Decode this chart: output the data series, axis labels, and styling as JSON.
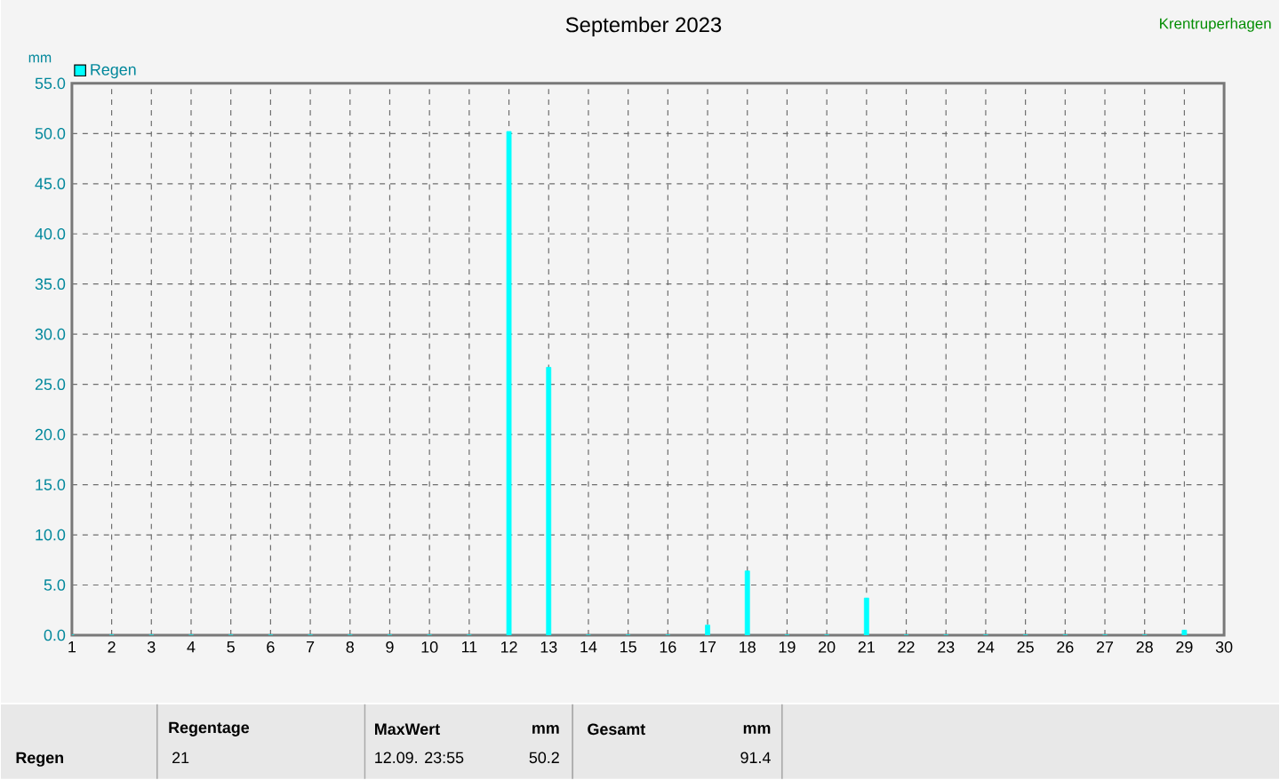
{
  "chart_data": {
    "type": "bar",
    "title": "September 2023",
    "xlabel": null,
    "ylabel": "mm",
    "x": [
      1,
      2,
      3,
      4,
      5,
      6,
      7,
      8,
      9,
      10,
      11,
      12,
      13,
      14,
      15,
      16,
      17,
      18,
      19,
      20,
      21,
      22,
      23,
      24,
      25,
      26,
      27,
      28,
      29
    ],
    "series": [
      {
        "name": "Regen",
        "color": "#00ffff",
        "values": [
          0,
          0,
          0,
          0,
          0,
          0,
          0,
          0,
          0,
          0,
          0,
          50.2,
          26.7,
          0,
          0,
          0,
          1.0,
          6.4,
          0,
          0,
          3.7,
          0,
          0,
          0,
          0,
          0,
          0,
          0,
          0.5
        ]
      }
    ],
    "xlim": [
      1,
      30
    ],
    "xticks": [
      1,
      2,
      3,
      4,
      5,
      6,
      7,
      8,
      9,
      10,
      11,
      12,
      13,
      14,
      15,
      16,
      17,
      18,
      19,
      20,
      21,
      22,
      23,
      24,
      25,
      26,
      27,
      28,
      29,
      30
    ],
    "ylim": [
      0,
      55
    ],
    "yticks": [
      {
        "value": 0,
        "label": "0.0"
      },
      {
        "value": 5,
        "label": "5.0"
      },
      {
        "value": 10,
        "label": "10.0"
      },
      {
        "value": 15,
        "label": "15.0"
      },
      {
        "value": 20,
        "label": "20.0"
      },
      {
        "value": 25,
        "label": "25.0"
      },
      {
        "value": 30,
        "label": "30.0"
      },
      {
        "value": 35,
        "label": "35.0"
      },
      {
        "value": 40,
        "label": "40.0"
      },
      {
        "value": 45,
        "label": "45.0"
      },
      {
        "value": 50,
        "label": "50.0"
      },
      {
        "value": 55,
        "label": "55.0"
      }
    ],
    "grid": true,
    "legend": "top left",
    "annotations": [
      "Krentruperhagen",
      "Regen",
      "Regentage",
      "21",
      "MaxWert",
      "mm",
      "12.09.  23:55",
      "50.2",
      "Gesamt",
      "mm",
      "91.4"
    ]
  }
}
